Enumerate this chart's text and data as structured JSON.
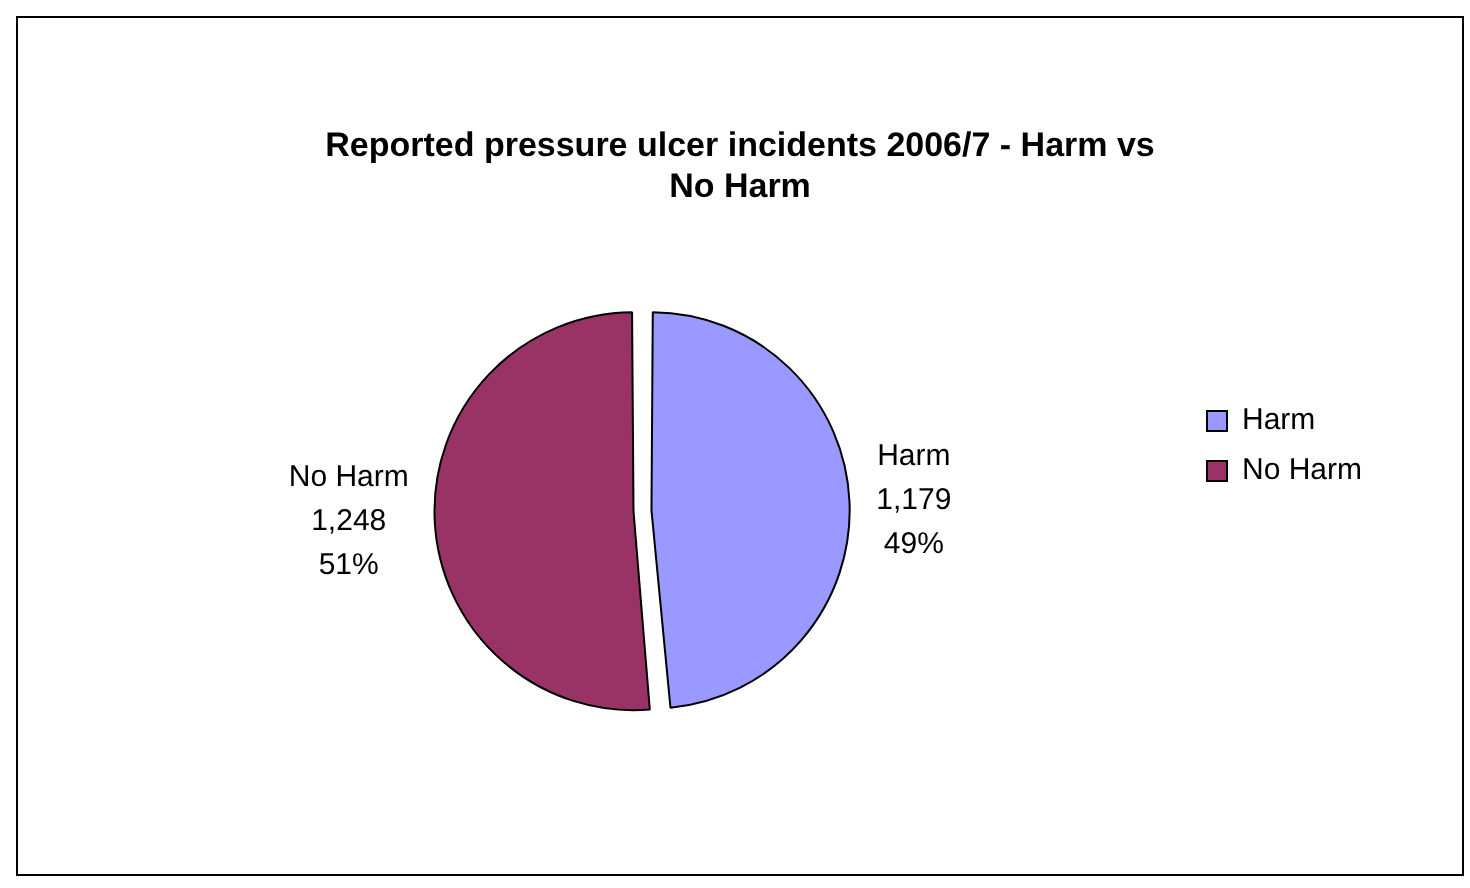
{
  "chart_data": {
    "type": "pie",
    "title": "Reported pressure ulcer incidents 2006/7 - Harm vs No Harm",
    "categories": [
      "Harm",
      "No Harm"
    ],
    "values": [
      1179,
      1248
    ],
    "colors": [
      "#9999ff",
      "#993366"
    ],
    "value_labels": [
      "1,179\n49%",
      "1,248\n51%"
    ],
    "legend": "right"
  }
}
